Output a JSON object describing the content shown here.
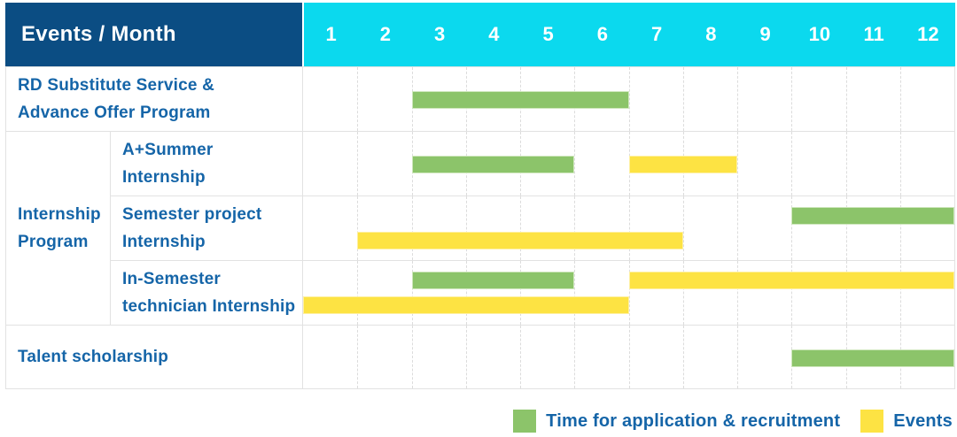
{
  "header": {
    "label": "Events / Month",
    "months": [
      "1",
      "2",
      "3",
      "4",
      "5",
      "6",
      "7",
      "8",
      "9",
      "10",
      "11",
      "12"
    ]
  },
  "group": {
    "label_lines": [
      "Internship",
      "Program"
    ]
  },
  "rows": [
    {
      "layout": "full",
      "label_lines": [
        "RD Substitute Service &",
        "Advance Offer Program"
      ],
      "bars": [
        {
          "color": "green",
          "start": 3,
          "end": 6,
          "line": "single"
        }
      ]
    },
    {
      "layout": "sub",
      "label_lines": [
        "A+Summer",
        "Internship"
      ],
      "bars": [
        {
          "color": "green",
          "start": 3,
          "end": 5,
          "line": "single"
        },
        {
          "color": "yellow",
          "start": 7,
          "end": 8,
          "line": "single"
        }
      ]
    },
    {
      "layout": "sub",
      "label_lines": [
        "Semester project",
        "Internship"
      ],
      "bars": [
        {
          "color": "green",
          "start": 10,
          "end": 12,
          "line": "top"
        },
        {
          "color": "yellow",
          "start": 2,
          "end": 7,
          "line": "bottom"
        }
      ]
    },
    {
      "layout": "sub",
      "label_lines": [
        "In-Semester",
        "technician Internship"
      ],
      "bars": [
        {
          "color": "green",
          "start": 3,
          "end": 5,
          "line": "top"
        },
        {
          "color": "yellow",
          "start": 7,
          "end": 12,
          "line": "top"
        },
        {
          "color": "yellow",
          "start": 1,
          "end": 6,
          "line": "bottom"
        }
      ]
    },
    {
      "layout": "full",
      "label_lines": [
        "Talent scholarship"
      ],
      "bars": [
        {
          "color": "green",
          "start": 10,
          "end": 12,
          "line": "single"
        }
      ]
    }
  ],
  "legend": [
    {
      "color": "green",
      "label": "Time for application & recruitment"
    },
    {
      "color": "yellow",
      "label": "Events"
    }
  ],
  "colors": {
    "header_blue": "#0b4d83",
    "month_cyan": "#0bd9ee",
    "green": "#8cc46a",
    "green_edge": "#cfe7bd",
    "yellow": "#fde343",
    "yellow_edge": "#fef0a3",
    "text_blue": "#1565a8",
    "grid_line": "#e2e2e2"
  },
  "chart_data": {
    "type": "bar",
    "subtype": "gantt",
    "title": "Events / Month",
    "xlabel": "Month",
    "x_ticks": [
      1,
      2,
      3,
      4,
      5,
      6,
      7,
      8,
      9,
      10,
      11,
      12
    ],
    "xlim": [
      1,
      12
    ],
    "grid": true,
    "legend_position": "bottom-right",
    "legend": [
      "Time for application & recruitment",
      "Events"
    ],
    "rows": [
      {
        "category": "RD Substitute Service & Advance Offer Program",
        "group": null,
        "bars": [
          {
            "series": "Time for application & recruitment",
            "start_month": 3,
            "end_month": 6
          }
        ]
      },
      {
        "category": "A+Summer Internship",
        "group": "Internship Program",
        "bars": [
          {
            "series": "Time for application & recruitment",
            "start_month": 3,
            "end_month": 5
          },
          {
            "series": "Events",
            "start_month": 7,
            "end_month": 8
          }
        ]
      },
      {
        "category": "Semester project Internship",
        "group": "Internship Program",
        "bars": [
          {
            "series": "Time for application & recruitment",
            "start_month": 10,
            "end_month": 12
          },
          {
            "series": "Events",
            "start_month": 2,
            "end_month": 7
          }
        ]
      },
      {
        "category": "In-Semester technician Internship",
        "group": "Internship Program",
        "bars": [
          {
            "series": "Time for application & recruitment",
            "start_month": 3,
            "end_month": 5
          },
          {
            "series": "Events",
            "start_month": 7,
            "end_month": 12
          },
          {
            "series": "Events",
            "start_month": 1,
            "end_month": 6
          }
        ]
      },
      {
        "category": "Talent scholarship",
        "group": null,
        "bars": [
          {
            "series": "Time for application & recruitment",
            "start_month": 10,
            "end_month": 12
          }
        ]
      }
    ]
  }
}
